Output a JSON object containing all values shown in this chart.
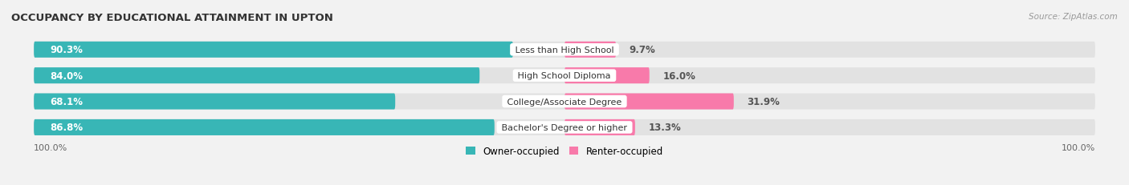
{
  "title": "OCCUPANCY BY EDUCATIONAL ATTAINMENT IN UPTON",
  "source": "Source: ZipAtlas.com",
  "categories": [
    "Less than High School",
    "High School Diploma",
    "College/Associate Degree",
    "Bachelor's Degree or higher"
  ],
  "owner_pct": [
    90.3,
    84.0,
    68.1,
    86.8
  ],
  "renter_pct": [
    9.7,
    16.0,
    31.9,
    13.3
  ],
  "owner_color": "#38b6b6",
  "renter_color": "#f87aaa",
  "bg_color": "#f2f2f2",
  "bar_bg_color": "#e2e2e2",
  "bar_height": 0.62,
  "title_fontsize": 9.5,
  "label_fontsize": 8.0,
  "pct_fontsize": 8.5,
  "tick_fontsize": 8.0,
  "legend_fontsize": 8.5,
  "source_fontsize": 7.5,
  "axis_left_label": "100.0%",
  "axis_right_label": "100.0%",
  "xlim_left": -100,
  "xlim_right": 100
}
